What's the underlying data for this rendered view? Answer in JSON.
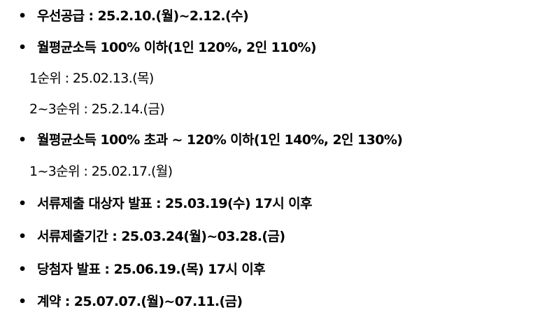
{
  "items": [
    {
      "type": "bullet",
      "bold": "우선공급 :",
      "text": " 25.2.10.(월)~2.12.(수)"
    },
    {
      "type": "bullet",
      "bold": "월평균소득 100% 이하(1인 120%, 2인 110%)",
      "text": ""
    },
    {
      "type": "sub",
      "bold": "",
      "text": "1순위 : 25.02.13.(목)"
    },
    {
      "type": "sub",
      "bold": "",
      "text": "2~3순위 : 25.2.14.(금)"
    },
    {
      "type": "bullet",
      "bold": "월평균소득 100% 초과 ~ 120% 이하(1인 140%, 2인 130%)",
      "text": ""
    },
    {
      "type": "sub",
      "bold": "",
      "text": "1~3순위 : 25.02.17.(월)"
    },
    {
      "type": "bullet",
      "bold": "서류제출 대상자 발표 :",
      "text": " 25.03.19(수) 17시 이후"
    },
    {
      "type": "bullet",
      "bold": "서류제출기간 :",
      "text": " 25.03.24(월)~03.28.(금)"
    },
    {
      "type": "bullet",
      "bold": "당첨자 발표 :",
      "text": " 25.06.19.(목) 17시 이후"
    },
    {
      "type": "bullet",
      "bold": "계약 :",
      "text": " 25.07.07.(월)~07.11.(금)"
    }
  ],
  "bullet_glyph": "•"
}
